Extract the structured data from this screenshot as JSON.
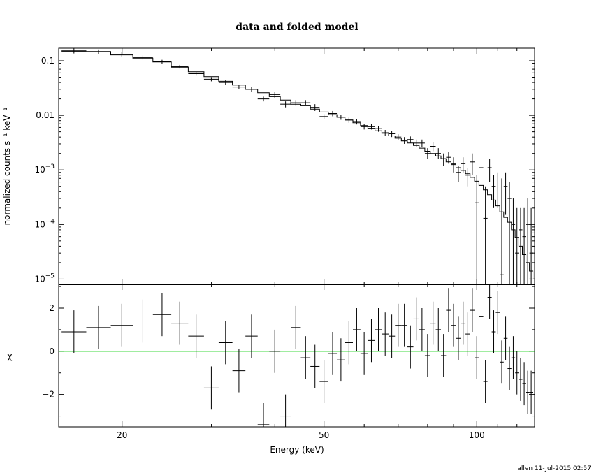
{
  "chart_data": {
    "type": "scatter",
    "title": "data and folded model",
    "xlabel": "Energy (keV)",
    "x_scale": "log",
    "xlim": [
      15,
      130
    ],
    "x_ticks": [
      {
        "value": 20,
        "label": "20"
      },
      {
        "value": 50,
        "label": "50"
      },
      {
        "value": 100,
        "label": "100"
      }
    ],
    "upper": {
      "ylabel": "normalized counts s⁻¹ keV⁻¹",
      "y_scale": "log",
      "ylim": [
        8e-06,
        0.17
      ],
      "y_ticks": [
        {
          "value": 0.1,
          "base": "0.1",
          "sup": ""
        },
        {
          "value": 0.01,
          "base": "0.01",
          "sup": ""
        },
        {
          "value": 0.001,
          "base": "10",
          "sup": "−3"
        },
        {
          "value": 0.0001,
          "base": "10",
          "sup": "−4"
        },
        {
          "value": 1e-05,
          "base": "10",
          "sup": "−5"
        }
      ],
      "data": [
        [
          15.2,
          17.0,
          0.152,
          0.136,
          0.168
        ],
        [
          17.0,
          19.0,
          0.146,
          0.131,
          0.161
        ],
        [
          19.0,
          21.0,
          0.132,
          0.12,
          0.145
        ],
        [
          21.0,
          23.0,
          0.115,
          0.105,
          0.125
        ],
        [
          23.0,
          25.0,
          0.096,
          0.088,
          0.104
        ],
        [
          25.0,
          27.0,
          0.078,
          0.072,
          0.084
        ],
        [
          27.0,
          29.0,
          0.058,
          0.053,
          0.063
        ],
        [
          29.0,
          31.0,
          0.046,
          0.042,
          0.05
        ],
        [
          31.0,
          33.0,
          0.04,
          0.036,
          0.044
        ],
        [
          33.0,
          35.0,
          0.033,
          0.03,
          0.036
        ],
        [
          35.0,
          37.0,
          0.03,
          0.027,
          0.033
        ],
        [
          37.0,
          39.0,
          0.02,
          0.018,
          0.022
        ],
        [
          39.0,
          41.0,
          0.024,
          0.021,
          0.027
        ],
        [
          41.0,
          43.0,
          0.016,
          0.014,
          0.018
        ],
        [
          43.0,
          45.0,
          0.017,
          0.015,
          0.019
        ],
        [
          45.0,
          47.0,
          0.017,
          0.015,
          0.019
        ],
        [
          47.0,
          49.0,
          0.014,
          0.012,
          0.016
        ],
        [
          49.0,
          51.0,
          0.0095,
          0.0085,
          0.0105
        ],
        [
          51.0,
          53.0,
          0.0108,
          0.0096,
          0.012
        ],
        [
          53.0,
          55.0,
          0.0093,
          0.0083,
          0.0103
        ],
        [
          55.0,
          57.0,
          0.0082,
          0.0073,
          0.0091
        ],
        [
          57.0,
          59.0,
          0.0077,
          0.0068,
          0.0086
        ],
        [
          59.0,
          61.0,
          0.0062,
          0.0055,
          0.0069
        ],
        [
          61.0,
          63.0,
          0.0062,
          0.0055,
          0.0069
        ],
        [
          63.0,
          65.0,
          0.0057,
          0.005,
          0.0064
        ],
        [
          65.0,
          67.0,
          0.0048,
          0.0042,
          0.0054
        ],
        [
          67.0,
          69.0,
          0.0046,
          0.004,
          0.0052
        ],
        [
          69.0,
          71.0,
          0.004,
          0.0035,
          0.0045
        ],
        [
          71.0,
          73.0,
          0.0035,
          0.003,
          0.004
        ],
        [
          73.0,
          75.0,
          0.0036,
          0.0031,
          0.0041
        ],
        [
          75.0,
          77.0,
          0.0031,
          0.0026,
          0.0036
        ],
        [
          77.0,
          79.0,
          0.0031,
          0.0026,
          0.0036
        ],
        [
          79.0,
          81.0,
          0.002,
          0.0016,
          0.0025
        ],
        [
          81.0,
          83.0,
          0.0027,
          0.0022,
          0.0032
        ],
        [
          83.0,
          85.0,
          0.002,
          0.0016,
          0.0025
        ],
        [
          85.0,
          87.0,
          0.0016,
          0.0012,
          0.002
        ],
        [
          87.0,
          89.0,
          0.0017,
          0.0013,
          0.0021
        ],
        [
          89.0,
          91.0,
          0.0013,
          0.0009,
          0.0017
        ],
        [
          91.0,
          93.0,
          0.0009,
          0.0006,
          0.0012
        ],
        [
          93.0,
          95.0,
          0.0013,
          0.0009,
          0.0017
        ],
        [
          95.0,
          97.0,
          0.0008,
          0.0005,
          0.0011
        ],
        [
          97.0,
          99.0,
          0.0014,
          0.0008,
          0.002
        ],
        [
          99.0,
          101.0,
          0.00025,
          8e-06,
          0.0008
        ],
        [
          101.0,
          103.0,
          0.0011,
          0.0006,
          0.0016
        ],
        [
          103.0,
          105.0,
          0.00013,
          8e-06,
          0.0005
        ],
        [
          105.0,
          107.0,
          0.0011,
          0.0006,
          0.0016
        ],
        [
          107.0,
          109.0,
          0.0005,
          0.0002,
          0.0008
        ],
        [
          109.0,
          111.0,
          0.00055,
          0.0002,
          0.0009
        ],
        [
          111.0,
          113.0,
          1.2e-05,
          8e-06,
          0.0007
        ],
        [
          113.0,
          115.0,
          0.0005,
          0.00015,
          0.0009
        ],
        [
          115.0,
          117.0,
          0.0003,
          8e-06,
          0.0006
        ],
        [
          117.0,
          119.0,
          0.0001,
          8e-06,
          0.0003
        ],
        [
          119.0,
          121.0,
          3e-05,
          8e-06,
          0.0002
        ],
        [
          121.0,
          123.0,
          8e-05,
          8e-06,
          0.0002
        ],
        [
          123.0,
          125.0,
          6e-05,
          8e-06,
          0.0002
        ],
        [
          125.0,
          127.0,
          0.0001,
          8e-06,
          0.0003
        ],
        [
          127.0,
          129.0,
          3e-05,
          8e-06,
          0.0002
        ]
      ],
      "model": [
        [
          15.2,
          0.148
        ],
        [
          17.0,
          0.148
        ],
        [
          19.0,
          0.128
        ],
        [
          21.0,
          0.112
        ],
        [
          23.0,
          0.095
        ],
        [
          25.0,
          0.076
        ],
        [
          27.0,
          0.063
        ],
        [
          29.0,
          0.051
        ],
        [
          31.0,
          0.042
        ],
        [
          33.0,
          0.036
        ],
        [
          35.0,
          0.03
        ],
        [
          37.0,
          0.026
        ],
        [
          39.0,
          0.022
        ],
        [
          41.0,
          0.019
        ],
        [
          43.0,
          0.016
        ],
        [
          45.0,
          0.015
        ],
        [
          47.0,
          0.013
        ],
        [
          49.0,
          0.0115
        ],
        [
          51.0,
          0.0103
        ],
        [
          53.0,
          0.0092
        ],
        [
          55.0,
          0.0082
        ],
        [
          57.0,
          0.0073
        ],
        [
          59.0,
          0.0065
        ],
        [
          61.0,
          0.0058
        ],
        [
          63.0,
          0.0052
        ],
        [
          65.0,
          0.0047
        ],
        [
          67.0,
          0.0042
        ],
        [
          69.0,
          0.0038
        ],
        [
          71.0,
          0.0034
        ],
        [
          73.0,
          0.0031
        ],
        [
          75.0,
          0.0028
        ],
        [
          77.0,
          0.0025
        ],
        [
          79.0,
          0.0022
        ],
        [
          81.0,
          0.002
        ],
        [
          83.0,
          0.0018
        ],
        [
          85.0,
          0.0016
        ],
        [
          87.0,
          0.0014
        ],
        [
          89.0,
          0.00125
        ],
        [
          91.0,
          0.0011
        ],
        [
          93.0,
          0.00098
        ],
        [
          95.0,
          0.00085
        ],
        [
          97.0,
          0.00073
        ],
        [
          99.0,
          0.00062
        ],
        [
          101.0,
          0.00052
        ],
        [
          103.0,
          0.00043
        ],
        [
          105.0,
          0.00035
        ],
        [
          107.0,
          0.00028
        ],
        [
          109.0,
          0.00022
        ],
        [
          111.0,
          0.00017
        ],
        [
          113.0,
          0.000135
        ],
        [
          115.0,
          0.00011
        ],
        [
          117.0,
          8e-05
        ],
        [
          119.0,
          5.8e-05
        ],
        [
          121.0,
          4e-05
        ],
        [
          123.0,
          2.8e-05
        ],
        [
          125.0,
          2e-05
        ],
        [
          127.0,
          1.4e-05
        ],
        [
          129.0,
          1e-05
        ],
        [
          130.0,
          1e-05
        ]
      ]
    },
    "lower": {
      "ylabel": "χ",
      "ylim": [
        -3.5,
        3.1
      ],
      "y_ticks": [
        {
          "value": 2,
          "label": "2"
        },
        {
          "value": 0,
          "label": "0"
        },
        {
          "value": -2,
          "label": "−2"
        }
      ],
      "zero_line_color": "#00cc00",
      "data": [
        [
          15.2,
          17.0,
          0.9,
          1.0
        ],
        [
          17.0,
          19.0,
          1.1,
          1.0
        ],
        [
          19.0,
          21.0,
          1.2,
          1.0
        ],
        [
          21.0,
          23.0,
          1.4,
          1.0
        ],
        [
          23.0,
          25.0,
          1.7,
          1.0
        ],
        [
          25.0,
          27.0,
          1.3,
          1.0
        ],
        [
          27.0,
          29.0,
          0.7,
          1.0
        ],
        [
          29.0,
          31.0,
          -1.7,
          1.0
        ],
        [
          31.0,
          33.0,
          0.4,
          1.0
        ],
        [
          33.0,
          35.0,
          -0.9,
          1.0
        ],
        [
          35.0,
          37.0,
          0.7,
          1.0
        ],
        [
          37.0,
          39.0,
          -3.4,
          1.0
        ],
        [
          39.0,
          41.0,
          0.0,
          1.0
        ],
        [
          41.0,
          43.0,
          -3.0,
          1.0
        ],
        [
          43.0,
          45.0,
          1.1,
          1.0
        ],
        [
          45.0,
          47.0,
          -0.3,
          1.0
        ],
        [
          47.0,
          49.0,
          -0.7,
          1.0
        ],
        [
          49.0,
          51.0,
          -1.4,
          1.0
        ],
        [
          51.0,
          53.0,
          -0.1,
          1.0
        ],
        [
          53.0,
          55.0,
          -0.4,
          1.0
        ],
        [
          55.0,
          57.0,
          0.4,
          1.0
        ],
        [
          57.0,
          59.0,
          1.0,
          1.0
        ],
        [
          59.0,
          61.0,
          -0.1,
          1.0
        ],
        [
          61.0,
          63.0,
          0.5,
          1.0
        ],
        [
          63.0,
          65.0,
          1.0,
          1.0
        ],
        [
          65.0,
          67.0,
          0.8,
          1.0
        ],
        [
          67.0,
          69.0,
          0.7,
          1.0
        ],
        [
          69.0,
          71.0,
          1.2,
          1.0
        ],
        [
          71.0,
          73.0,
          1.2,
          1.0
        ],
        [
          73.0,
          75.0,
          0.2,
          1.0
        ],
        [
          75.0,
          77.0,
          1.5,
          1.0
        ],
        [
          77.0,
          79.0,
          1.0,
          1.0
        ],
        [
          79.0,
          81.0,
          -0.2,
          1.0
        ],
        [
          81.0,
          83.0,
          1.3,
          1.0
        ],
        [
          83.0,
          85.0,
          1.0,
          1.0
        ],
        [
          85.0,
          87.0,
          -0.2,
          1.0
        ],
        [
          87.0,
          89.0,
          1.9,
          1.0
        ],
        [
          89.0,
          91.0,
          1.2,
          1.0
        ],
        [
          91.0,
          93.0,
          0.6,
          1.0
        ],
        [
          93.0,
          95.0,
          1.3,
          1.0
        ],
        [
          95.0,
          97.0,
          0.8,
          1.0
        ],
        [
          97.0,
          99.0,
          1.9,
          1.0
        ],
        [
          99.0,
          101.0,
          -0.3,
          1.0
        ],
        [
          101.0,
          103.0,
          1.6,
          1.0
        ],
        [
          103.0,
          105.0,
          -1.4,
          1.0
        ],
        [
          105.0,
          107.0,
          2.5,
          1.0
        ],
        [
          107.0,
          109.0,
          0.9,
          1.0
        ],
        [
          109.0,
          111.0,
          1.8,
          1.0
        ],
        [
          111.0,
          113.0,
          -0.5,
          1.0
        ],
        [
          113.0,
          115.0,
          0.6,
          1.0
        ],
        [
          115.0,
          117.0,
          -0.8,
          1.0
        ],
        [
          117.0,
          119.0,
          -0.3,
          1.0
        ],
        [
          119.0,
          121.0,
          -1.0,
          1.0
        ],
        [
          121.0,
          123.0,
          -1.3,
          1.0
        ],
        [
          123.0,
          125.0,
          -1.5,
          1.0
        ],
        [
          125.0,
          127.0,
          -1.9,
          1.0
        ],
        [
          127.0,
          129.0,
          -1.9,
          1.0
        ]
      ]
    }
  },
  "footer": {
    "stamp": "allen 11-Jul-2015 02:57"
  }
}
